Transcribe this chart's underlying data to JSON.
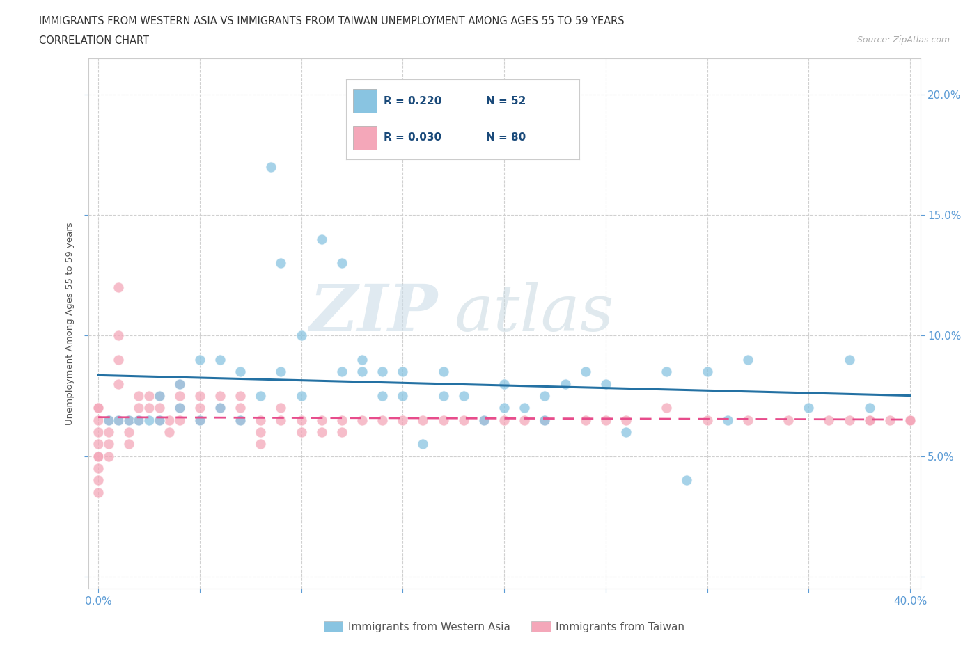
{
  "title_line1": "IMMIGRANTS FROM WESTERN ASIA VS IMMIGRANTS FROM TAIWAN UNEMPLOYMENT AMONG AGES 55 TO 59 YEARS",
  "title_line2": "CORRELATION CHART",
  "source_text": "Source: ZipAtlas.com",
  "ylabel": "Unemployment Among Ages 55 to 59 years",
  "xlim": [
    -0.005,
    0.405
  ],
  "ylim": [
    -0.005,
    0.215
  ],
  "xticks": [
    0.0,
    0.05,
    0.1,
    0.15,
    0.2,
    0.25,
    0.3,
    0.35,
    0.4
  ],
  "yticks": [
    0.0,
    0.05,
    0.1,
    0.15,
    0.2
  ],
  "grid_color": "#d0d0d0",
  "watermark_zip": "ZIP",
  "watermark_atlas": "atlas",
  "color_western_asia": "#89c4e1",
  "color_taiwan": "#f4a7b9",
  "color_western_asia_line": "#2471a3",
  "color_taiwan_line": "#e74c8b",
  "legend_R1": "R = 0.220",
  "legend_N1": "N = 52",
  "legend_R2": "R = 0.030",
  "legend_N2": "N = 80",
  "wa_x": [
    0.005,
    0.01,
    0.015,
    0.02,
    0.025,
    0.03,
    0.03,
    0.04,
    0.04,
    0.05,
    0.05,
    0.06,
    0.06,
    0.07,
    0.07,
    0.08,
    0.085,
    0.09,
    0.09,
    0.1,
    0.1,
    0.11,
    0.12,
    0.12,
    0.13,
    0.13,
    0.14,
    0.14,
    0.15,
    0.15,
    0.16,
    0.17,
    0.17,
    0.18,
    0.19,
    0.2,
    0.2,
    0.21,
    0.22,
    0.22,
    0.23,
    0.24,
    0.25,
    0.26,
    0.28,
    0.29,
    0.3,
    0.31,
    0.32,
    0.35,
    0.37,
    0.38
  ],
  "wa_y": [
    0.065,
    0.065,
    0.065,
    0.065,
    0.065,
    0.065,
    0.075,
    0.07,
    0.08,
    0.065,
    0.09,
    0.07,
    0.09,
    0.065,
    0.085,
    0.075,
    0.17,
    0.085,
    0.13,
    0.075,
    0.1,
    0.14,
    0.085,
    0.13,
    0.085,
    0.09,
    0.075,
    0.085,
    0.075,
    0.085,
    0.055,
    0.075,
    0.085,
    0.075,
    0.065,
    0.07,
    0.08,
    0.07,
    0.065,
    0.075,
    0.08,
    0.085,
    0.08,
    0.06,
    0.085,
    0.04,
    0.085,
    0.065,
    0.09,
    0.07,
    0.09,
    0.07
  ],
  "tw_x": [
    0.0,
    0.0,
    0.0,
    0.0,
    0.0,
    0.0,
    0.0,
    0.0,
    0.0,
    0.0,
    0.005,
    0.005,
    0.005,
    0.005,
    0.01,
    0.01,
    0.01,
    0.01,
    0.01,
    0.015,
    0.015,
    0.015,
    0.02,
    0.02,
    0.02,
    0.025,
    0.025,
    0.03,
    0.03,
    0.03,
    0.035,
    0.035,
    0.04,
    0.04,
    0.04,
    0.04,
    0.05,
    0.05,
    0.05,
    0.06,
    0.06,
    0.07,
    0.07,
    0.07,
    0.08,
    0.08,
    0.08,
    0.09,
    0.09,
    0.1,
    0.1,
    0.11,
    0.11,
    0.12,
    0.12,
    0.13,
    0.14,
    0.15,
    0.16,
    0.17,
    0.18,
    0.19,
    0.2,
    0.21,
    0.22,
    0.24,
    0.25,
    0.26,
    0.28,
    0.3,
    0.32,
    0.34,
    0.36,
    0.37,
    0.38,
    0.38,
    0.39,
    0.4,
    0.4,
    0.4
  ],
  "tw_y": [
    0.065,
    0.07,
    0.07,
    0.06,
    0.055,
    0.05,
    0.05,
    0.045,
    0.04,
    0.035,
    0.065,
    0.06,
    0.055,
    0.05,
    0.065,
    0.12,
    0.1,
    0.09,
    0.08,
    0.065,
    0.06,
    0.055,
    0.075,
    0.07,
    0.065,
    0.075,
    0.07,
    0.075,
    0.07,
    0.065,
    0.065,
    0.06,
    0.08,
    0.075,
    0.07,
    0.065,
    0.075,
    0.07,
    0.065,
    0.075,
    0.07,
    0.075,
    0.07,
    0.065,
    0.065,
    0.06,
    0.055,
    0.07,
    0.065,
    0.065,
    0.06,
    0.065,
    0.06,
    0.065,
    0.06,
    0.065,
    0.065,
    0.065,
    0.065,
    0.065,
    0.065,
    0.065,
    0.065,
    0.065,
    0.065,
    0.065,
    0.065,
    0.065,
    0.07,
    0.065,
    0.065,
    0.065,
    0.065,
    0.065,
    0.065,
    0.065,
    0.065,
    0.065,
    0.065,
    0.065
  ]
}
